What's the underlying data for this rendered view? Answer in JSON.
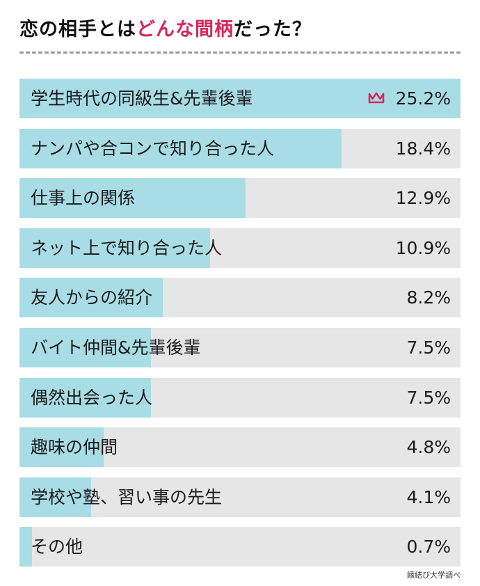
{
  "header": {
    "title_pre": "恋の相手とは",
    "title_highlight": "どんな間柄",
    "title_post": "だった？"
  },
  "colors": {
    "bar": "#a8dde6",
    "track": "#e6e6e6",
    "highlight": "#d8265b"
  },
  "top_marker_icon": "crown-icon",
  "chart_data": {
    "type": "bar",
    "orientation": "horizontal",
    "categories": [
      "学生時代の同級生&先輩後輩",
      "ナンパや合コンで知り合った人",
      "仕事上の関係",
      "ネット上で知り合った人",
      "友人からの紹介",
      "バイト仲間&先輩後輩",
      "偶然出会った人",
      "趣味の仲間",
      "学校や塾、習い事の先生",
      "その他"
    ],
    "values": [
      25.2,
      18.4,
      12.9,
      10.9,
      8.2,
      7.5,
      7.5,
      4.8,
      4.1,
      0.7
    ],
    "value_labels": [
      "25.2%",
      "18.4%",
      "12.9%",
      "10.9%",
      "8.2%",
      "7.5%",
      "7.5%",
      "4.8%",
      "4.1%",
      "0.7%"
    ],
    "xlim": [
      0,
      25.2
    ],
    "grid": false,
    "legend": "none"
  },
  "source": "縁結び大学調べ"
}
